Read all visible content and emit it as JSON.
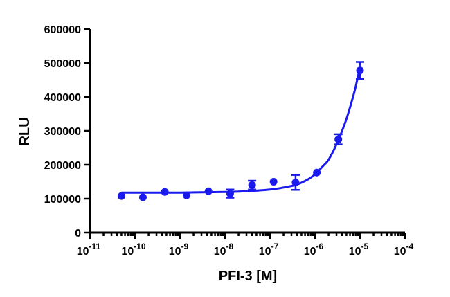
{
  "chart_data": {
    "type": "scatter",
    "title": "",
    "xlabel": "PFI-3 [M]",
    "ylabel": "RLU",
    "x_scale": "log",
    "xlim": [
      1e-11,
      0.0001
    ],
    "ylim": [
      0,
      600000
    ],
    "x_tick_labels": [
      {
        "base": "10",
        "exp": "-11"
      },
      {
        "base": "10",
        "exp": "-10"
      },
      {
        "base": "10",
        "exp": "-9"
      },
      {
        "base": "10",
        "exp": "-8"
      },
      {
        "base": "10",
        "exp": "-7"
      },
      {
        "base": "10",
        "exp": "-6"
      },
      {
        "base": "10",
        "exp": "-5"
      },
      {
        "base": "10",
        "exp": "-4"
      }
    ],
    "x_tick_values": [
      1e-11,
      1e-10,
      1e-09,
      1e-08,
      1e-07,
      1e-06,
      1e-05,
      0.0001
    ],
    "y_tick_labels": [
      "0",
      "100000",
      "200000",
      "300000",
      "400000",
      "500000",
      "600000"
    ],
    "y_tick_values": [
      0,
      100000,
      200000,
      300000,
      400000,
      500000,
      600000
    ],
    "grid": false,
    "color": "#1a1aee",
    "points": [
      {
        "x": 5e-11,
        "y": 108000,
        "err": 0
      },
      {
        "x": 1.5e-10,
        "y": 104000,
        "err": 0
      },
      {
        "x": 4.6e-10,
        "y": 120000,
        "err": 0
      },
      {
        "x": 1.4e-09,
        "y": 110000,
        "err": 0
      },
      {
        "x": 4.3e-09,
        "y": 122000,
        "err": 0
      },
      {
        "x": 1.3e-08,
        "y": 115000,
        "err": 12000
      },
      {
        "x": 4e-08,
        "y": 140000,
        "err": 13000
      },
      {
        "x": 1.2e-07,
        "y": 150000,
        "err": 0
      },
      {
        "x": 3.7e-07,
        "y": 148000,
        "err": 22000
      },
      {
        "x": 1.1e-06,
        "y": 177000,
        "err": 0
      },
      {
        "x": 3.3e-06,
        "y": 275000,
        "err": 15000
      },
      {
        "x": 1e-05,
        "y": 478000,
        "err": 25000
      }
    ],
    "fit_curve": [
      {
        "x": 5e-11,
        "y": 118000
      },
      {
        "x": 1e-10,
        "y": 118000
      },
      {
        "x": 1e-09,
        "y": 118000
      },
      {
        "x": 1e-08,
        "y": 120000
      },
      {
        "x": 3e-08,
        "y": 122000
      },
      {
        "x": 1e-07,
        "y": 127000
      },
      {
        "x": 2e-07,
        "y": 133000
      },
      {
        "x": 4e-07,
        "y": 142000
      },
      {
        "x": 7e-07,
        "y": 157000
      },
      {
        "x": 1e-06,
        "y": 172000
      },
      {
        "x": 1.5e-06,
        "y": 196000
      },
      {
        "x": 2e-06,
        "y": 215000
      },
      {
        "x": 3e-06,
        "y": 260000
      },
      {
        "x": 4e-06,
        "y": 300000
      },
      {
        "x": 5e-06,
        "y": 335000
      },
      {
        "x": 6.5e-06,
        "y": 385000
      },
      {
        "x": 8e-06,
        "y": 430000
      },
      {
        "x": 1e-05,
        "y": 490000
      }
    ]
  }
}
